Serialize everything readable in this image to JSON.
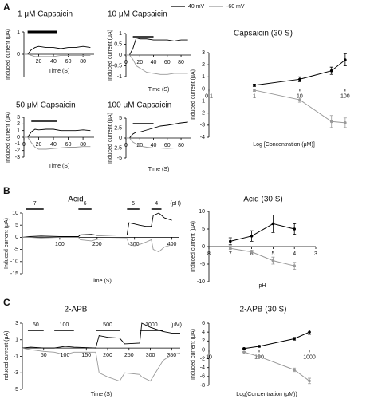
{
  "legend": [
    {
      "name": "40 mV",
      "color": "#000000"
    },
    {
      "name": "-60 mV",
      "color": "#999999"
    }
  ],
  "panel_labels": [
    "A",
    "B",
    "C"
  ],
  "chart_data": [
    {
      "type": "line",
      "title": "1 μM Capsaicin",
      "xlabel": "Time (S)",
      "ylabel": "Induced current (μA)",
      "x": [
        0,
        5,
        10,
        15,
        20,
        30,
        40,
        50,
        60,
        70,
        80,
        90
      ],
      "xlim": [
        0,
        95
      ],
      "ylim": [
        -1,
        1
      ],
      "xticks": [
        20,
        40,
        60,
        80
      ],
      "yticks": [
        1,
        0
      ],
      "stimuli": [
        {
          "start": 5,
          "end": 45
        }
      ],
      "series": [
        {
          "color": "#000000",
          "values": [
            0,
            0,
            0.2,
            0.3,
            0.35,
            0.3,
            0.3,
            0.25,
            0.3,
            0.3,
            0.35,
            0.3
          ]
        },
        {
          "color": "#999999",
          "values": [
            0,
            0,
            -0.05,
            -0.1,
            -0.1,
            -0.1,
            -0.1,
            -0.05,
            -0.05,
            -0.05,
            -0.05,
            -0.05
          ]
        }
      ]
    },
    {
      "type": "line",
      "title": "10 μM Capsaicin",
      "xlabel": "Time (S)",
      "ylabel": "Induced current (μA)",
      "x": [
        0,
        5,
        10,
        15,
        20,
        30,
        40,
        50,
        60,
        70,
        80,
        90
      ],
      "xlim": [
        0,
        95
      ],
      "ylim": [
        -1,
        1
      ],
      "xticks": [
        0,
        20,
        40,
        60,
        80
      ],
      "yticks": [
        1,
        0.5,
        0,
        -0.5,
        -1
      ],
      "stimuli": [
        {
          "start": 10,
          "end": 40
        }
      ],
      "series": [
        {
          "color": "#000000",
          "values": [
            0,
            0,
            0.3,
            0.8,
            0.75,
            0.75,
            0.7,
            0.7,
            0.7,
            0.65,
            0.7,
            0.7
          ]
        },
        {
          "color": "#999999",
          "values": [
            0,
            0,
            -0.2,
            -0.5,
            -0.6,
            -0.8,
            -0.85,
            -0.9,
            -0.9,
            -0.85,
            -0.85,
            -0.85
          ]
        }
      ]
    },
    {
      "type": "line",
      "title": "50 μM Capsaicin",
      "xlabel": "Time (S)",
      "ylabel": "Induced current (μA)",
      "x": [
        0,
        5,
        10,
        15,
        20,
        30,
        40,
        50,
        60,
        70,
        80,
        90
      ],
      "xlim": [
        0,
        95
      ],
      "ylim": [
        -3,
        3
      ],
      "xticks": [
        0,
        20,
        40,
        60,
        80
      ],
      "yticks": [
        3,
        2,
        1,
        0,
        -1,
        -2,
        -3
      ],
      "stimuli": [
        {
          "start": 10,
          "end": 45
        }
      ],
      "series": [
        {
          "color": "#000000",
          "values": [
            0,
            0,
            0.8,
            1.2,
            1.1,
            1.2,
            1.2,
            1.0,
            1.0,
            1.0,
            1.1,
            1.0
          ]
        },
        {
          "color": "#999999",
          "values": [
            0,
            0,
            -0.8,
            -1.5,
            -1.8,
            -1.8,
            -1.7,
            -1.6,
            -1.5,
            -1.5,
            -1.4,
            -1.4
          ]
        }
      ]
    },
    {
      "type": "line",
      "title": "100 μM Capsaicin",
      "xlabel": "Time (S)",
      "ylabel": "Induced current (μA)",
      "x": [
        0,
        5,
        10,
        15,
        20,
        30,
        40,
        50,
        60,
        70,
        80,
        90
      ],
      "xlim": [
        0,
        95
      ],
      "ylim": [
        -5,
        5
      ],
      "xticks": [
        0,
        20,
        40,
        60,
        80
      ],
      "yticks": [
        5,
        2.5,
        0,
        -2.5,
        -5
      ],
      "stimuli": [
        {
          "start": 10,
          "end": 40
        }
      ],
      "series": [
        {
          "color": "#000000",
          "values": [
            0,
            0,
            1,
            1.5,
            1.5,
            2,
            2.5,
            3,
            3.2,
            3.5,
            3.8,
            4
          ]
        },
        {
          "color": "#999999",
          "values": [
            0,
            0,
            -1,
            -1.5,
            -2,
            -2.3,
            -2.5,
            -2.5,
            -2.6,
            -2.5,
            -2.5,
            -2.5
          ]
        }
      ]
    },
    {
      "type": "errorline",
      "title": "Capsaicin (30 S)",
      "xlabel": "Log [Concentration (μM)]",
      "ylabel": "Induced current (μA)",
      "x": [
        1,
        10,
        50,
        100
      ],
      "xscale": "log",
      "xlim": [
        0.1,
        200
      ],
      "ylim": [
        -4,
        3
      ],
      "xticks": [
        0.1,
        1,
        10,
        100
      ],
      "yticks": [
        3,
        2,
        1,
        0,
        -1,
        -2,
        -3,
        -4
      ],
      "series": [
        {
          "color": "#000000",
          "values": [
            0.3,
            0.8,
            1.5,
            2.4
          ],
          "errors": [
            0.1,
            0.2,
            0.3,
            0.5
          ]
        },
        {
          "color": "#999999",
          "values": [
            -0.1,
            -0.9,
            -2.7,
            -2.8
          ],
          "errors": [
            0.1,
            0.2,
            0.5,
            0.4
          ]
        }
      ]
    },
    {
      "type": "line",
      "title": "Acid",
      "xlabel": "Time (S)",
      "ylabel": "Induced current (μA)",
      "x": [
        0,
        20,
        50,
        100,
        150,
        155,
        185,
        200,
        280,
        285,
        300,
        313,
        330,
        345,
        350,
        365,
        380,
        400
      ],
      "xlim": [
        0,
        420
      ],
      "ylim": [
        -15,
        10
      ],
      "xticks": [
        100,
        200,
        300,
        400
      ],
      "yticks": [
        10,
        5,
        0,
        -5,
        -10,
        -15
      ],
      "stimulus_unit": "(pH)",
      "stimuli": [
        {
          "label": "7",
          "start": 10,
          "end": 57
        },
        {
          "label": "6",
          "start": 150,
          "end": 185
        },
        {
          "label": "5",
          "start": 280,
          "end": 313
        },
        {
          "label": "4",
          "start": 345,
          "end": 372
        }
      ],
      "series": [
        {
          "color": "#000000",
          "values": [
            0,
            0.3,
            0.5,
            0.3,
            0.3,
            1,
            1.2,
            0.8,
            1,
            6,
            5.5,
            5,
            4.5,
            4.5,
            9,
            10,
            8,
            7
          ]
        },
        {
          "color": "#999999",
          "values": [
            0,
            0,
            -0.3,
            0,
            0,
            -1,
            -1.5,
            -0.8,
            -0.5,
            -3,
            -3.5,
            -3,
            -2,
            -1,
            -5,
            -6,
            -4,
            -3
          ]
        }
      ]
    },
    {
      "type": "errorline",
      "title": "Acid (30 S)",
      "xlabel": "pH",
      "ylabel": "Induced current (μA)",
      "x": [
        7,
        6,
        5,
        4
      ],
      "xlim": [
        8,
        3
      ],
      "ylim": [
        -10,
        10
      ],
      "xticks": [
        8,
        7,
        6,
        5,
        4,
        3
      ],
      "yticks": [
        10,
        5,
        0,
        -5,
        -10
      ],
      "series": [
        {
          "color": "#000000",
          "values": [
            1.5,
            3,
            6.5,
            5
          ],
          "errors": [
            1,
            1.5,
            2.5,
            1.5
          ]
        },
        {
          "color": "#999999",
          "values": [
            -0.5,
            -1.5,
            -4,
            -5.5
          ],
          "errors": [
            0.3,
            0.5,
            1,
            1
          ]
        }
      ]
    },
    {
      "type": "line",
      "title": "2-APB",
      "xlabel": "Time (S)",
      "ylabel": "Induced current (μA)",
      "x": [
        0,
        20,
        50,
        75,
        100,
        121,
        172,
        180,
        200,
        228,
        240,
        275,
        280,
        300,
        330,
        350,
        370
      ],
      "xlim": [
        0,
        370
      ],
      "ylim": [
        -5,
        3
      ],
      "xticks": [
        50,
        100,
        150,
        200,
        250,
        300,
        350
      ],
      "yticks": [
        3,
        1,
        -1,
        -3,
        -5
      ],
      "stimulus_unit": "(μM)",
      "stimuli": [
        {
          "label": "50",
          "start": 13,
          "end": 50
        },
        {
          "label": "100",
          "start": 75,
          "end": 121
        },
        {
          "label": "500",
          "start": 172,
          "end": 228
        },
        {
          "label": "1000",
          "start": 275,
          "end": 330
        }
      ],
      "series": [
        {
          "color": "#000000",
          "values": [
            0,
            0.1,
            0,
            0,
            0.2,
            0.1,
            0,
            1.5,
            1.3,
            1.2,
            0.5,
            0.6,
            3,
            2.5,
            2,
            1.8,
            1.8
          ]
        },
        {
          "color": "#999999",
          "values": [
            0,
            -0.2,
            -0.4,
            -0.5,
            -0.8,
            -0.5,
            -0.5,
            -3,
            -3.5,
            -4,
            -3,
            -3.2,
            -3.5,
            -4,
            -1.5,
            -0.8,
            -0.6
          ]
        }
      ]
    },
    {
      "type": "errorline",
      "title": "2-APB (30 S)",
      "xlabel": "Log(Concentration (μM))",
      "ylabel": "Induced current (μA)",
      "x": [
        50,
        100,
        500,
        1000
      ],
      "xscale": "log",
      "xlim": [
        10,
        2000
      ],
      "ylim": [
        -8,
        6
      ],
      "xticks": [
        10,
        100,
        1000
      ],
      "yticks": [
        6,
        4,
        2,
        0,
        -2,
        -4,
        -6,
        -8
      ],
      "series": [
        {
          "color": "#000000",
          "values": [
            0.3,
            0.8,
            2.5,
            4
          ],
          "errors": [
            0.1,
            0.2,
            0.3,
            0.5
          ]
        },
        {
          "color": "#999999",
          "values": [
            -0.5,
            -1.5,
            -4.5,
            -7
          ],
          "errors": [
            0.1,
            0.2,
            0.4,
            0.6
          ]
        }
      ]
    }
  ]
}
